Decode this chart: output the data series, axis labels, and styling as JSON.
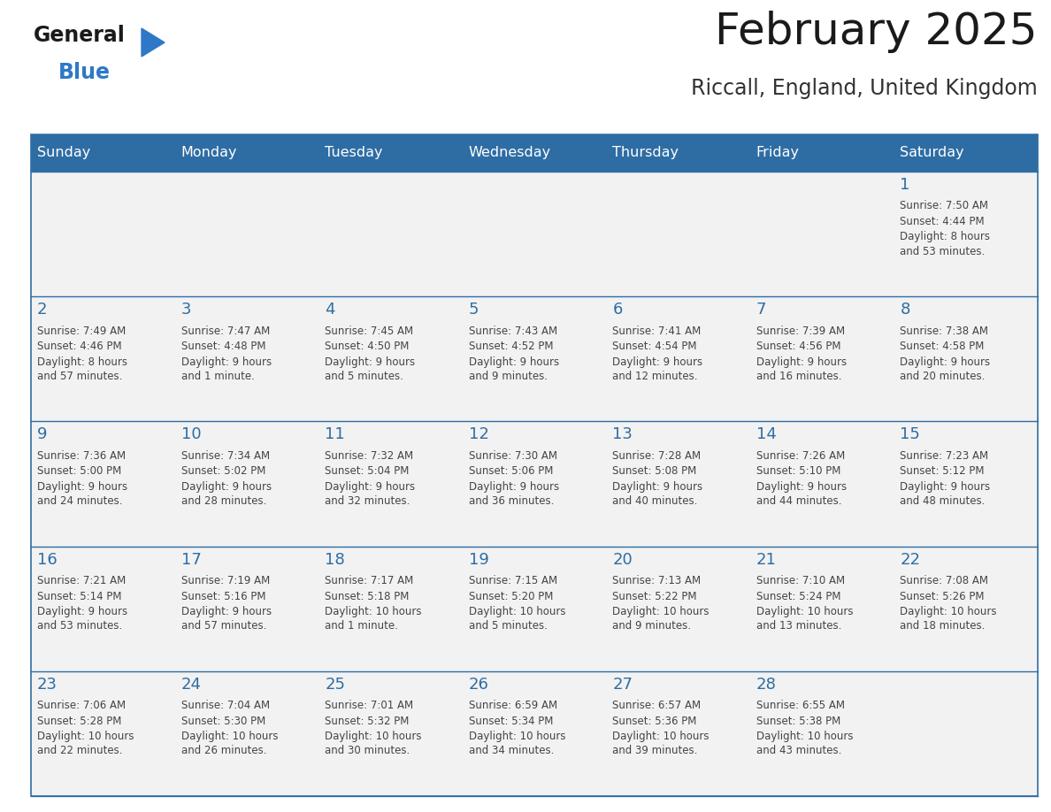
{
  "title": "February 2025",
  "subtitle": "Riccall, England, United Kingdom",
  "header_bg": "#2E6DA4",
  "header_text_color": "#FFFFFF",
  "cell_bg": "#F2F2F2",
  "day_number_color": "#2E6DA4",
  "text_color": "#444444",
  "border_color": "#2E6DA4",
  "days_of_week": [
    "Sunday",
    "Monday",
    "Tuesday",
    "Wednesday",
    "Thursday",
    "Friday",
    "Saturday"
  ],
  "calendar_data": [
    [
      null,
      null,
      null,
      null,
      null,
      null,
      {
        "day": "1",
        "sunrise": "7:50 AM",
        "sunset": "4:44 PM",
        "daylight": "8 hours\nand 53 minutes."
      }
    ],
    [
      {
        "day": "2",
        "sunrise": "7:49 AM",
        "sunset": "4:46 PM",
        "daylight": "8 hours\nand 57 minutes."
      },
      {
        "day": "3",
        "sunrise": "7:47 AM",
        "sunset": "4:48 PM",
        "daylight": "9 hours\nand 1 minute."
      },
      {
        "day": "4",
        "sunrise": "7:45 AM",
        "sunset": "4:50 PM",
        "daylight": "9 hours\nand 5 minutes."
      },
      {
        "day": "5",
        "sunrise": "7:43 AM",
        "sunset": "4:52 PM",
        "daylight": "9 hours\nand 9 minutes."
      },
      {
        "day": "6",
        "sunrise": "7:41 AM",
        "sunset": "4:54 PM",
        "daylight": "9 hours\nand 12 minutes."
      },
      {
        "day": "7",
        "sunrise": "7:39 AM",
        "sunset": "4:56 PM",
        "daylight": "9 hours\nand 16 minutes."
      },
      {
        "day": "8",
        "sunrise": "7:38 AM",
        "sunset": "4:58 PM",
        "daylight": "9 hours\nand 20 minutes."
      }
    ],
    [
      {
        "day": "9",
        "sunrise": "7:36 AM",
        "sunset": "5:00 PM",
        "daylight": "9 hours\nand 24 minutes."
      },
      {
        "day": "10",
        "sunrise": "7:34 AM",
        "sunset": "5:02 PM",
        "daylight": "9 hours\nand 28 minutes."
      },
      {
        "day": "11",
        "sunrise": "7:32 AM",
        "sunset": "5:04 PM",
        "daylight": "9 hours\nand 32 minutes."
      },
      {
        "day": "12",
        "sunrise": "7:30 AM",
        "sunset": "5:06 PM",
        "daylight": "9 hours\nand 36 minutes."
      },
      {
        "day": "13",
        "sunrise": "7:28 AM",
        "sunset": "5:08 PM",
        "daylight": "9 hours\nand 40 minutes."
      },
      {
        "day": "14",
        "sunrise": "7:26 AM",
        "sunset": "5:10 PM",
        "daylight": "9 hours\nand 44 minutes."
      },
      {
        "day": "15",
        "sunrise": "7:23 AM",
        "sunset": "5:12 PM",
        "daylight": "9 hours\nand 48 minutes."
      }
    ],
    [
      {
        "day": "16",
        "sunrise": "7:21 AM",
        "sunset": "5:14 PM",
        "daylight": "9 hours\nand 53 minutes."
      },
      {
        "day": "17",
        "sunrise": "7:19 AM",
        "sunset": "5:16 PM",
        "daylight": "9 hours\nand 57 minutes."
      },
      {
        "day": "18",
        "sunrise": "7:17 AM",
        "sunset": "5:18 PM",
        "daylight": "10 hours\nand 1 minute."
      },
      {
        "day": "19",
        "sunrise": "7:15 AM",
        "sunset": "5:20 PM",
        "daylight": "10 hours\nand 5 minutes."
      },
      {
        "day": "20",
        "sunrise": "7:13 AM",
        "sunset": "5:22 PM",
        "daylight": "10 hours\nand 9 minutes."
      },
      {
        "day": "21",
        "sunrise": "7:10 AM",
        "sunset": "5:24 PM",
        "daylight": "10 hours\nand 13 minutes."
      },
      {
        "day": "22",
        "sunrise": "7:08 AM",
        "sunset": "5:26 PM",
        "daylight": "10 hours\nand 18 minutes."
      }
    ],
    [
      {
        "day": "23",
        "sunrise": "7:06 AM",
        "sunset": "5:28 PM",
        "daylight": "10 hours\nand 22 minutes."
      },
      {
        "day": "24",
        "sunrise": "7:04 AM",
        "sunset": "5:30 PM",
        "daylight": "10 hours\nand 26 minutes."
      },
      {
        "day": "25",
        "sunrise": "7:01 AM",
        "sunset": "5:32 PM",
        "daylight": "10 hours\nand 30 minutes."
      },
      {
        "day": "26",
        "sunrise": "6:59 AM",
        "sunset": "5:34 PM",
        "daylight": "10 hours\nand 34 minutes."
      },
      {
        "day": "27",
        "sunrise": "6:57 AM",
        "sunset": "5:36 PM",
        "daylight": "10 hours\nand 39 minutes."
      },
      {
        "day": "28",
        "sunrise": "6:55 AM",
        "sunset": "5:38 PM",
        "daylight": "10 hours\nand 43 minutes."
      },
      null
    ]
  ],
  "logo_general_color": "#1a1a1a",
  "logo_blue_color": "#2E78C7"
}
